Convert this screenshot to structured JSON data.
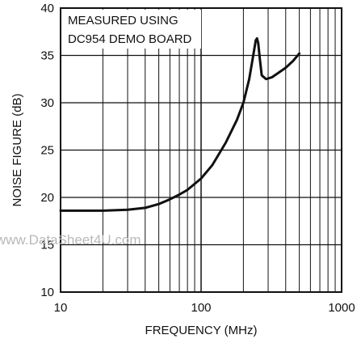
{
  "chart_data": {
    "type": "line",
    "title": "",
    "xlabel": "FREQUENCY (MHz)",
    "ylabel": "NOISE FIGURE (dB)",
    "x_scale": "log",
    "xlim": [
      10,
      1000
    ],
    "ylim": [
      10,
      40
    ],
    "x_ticks": [
      10,
      100,
      1000
    ],
    "x_tick_labels": [
      "10",
      "100",
      "1000"
    ],
    "y_ticks": [
      10,
      15,
      20,
      25,
      30,
      35,
      40
    ],
    "y_tick_labels": [
      "10",
      "15",
      "20",
      "25",
      "30",
      "35",
      "40"
    ],
    "grid": true,
    "annotation": [
      "MEASURED USING",
      "DC954 DEMO BOARD"
    ],
    "series": [
      {
        "x": [
          10,
          15,
          20,
          30,
          40,
          50,
          60,
          70,
          80,
          100,
          120,
          150,
          180,
          200,
          220,
          235,
          245,
          250,
          255,
          262,
          270,
          290,
          320,
          350,
          400,
          450,
          500
        ],
        "y": [
          18.6,
          18.6,
          18.6,
          18.7,
          18.9,
          19.3,
          19.8,
          20.3,
          20.8,
          22.0,
          23.4,
          25.8,
          28.2,
          30.0,
          32.5,
          35.0,
          36.6,
          36.8,
          36.3,
          34.6,
          32.9,
          32.5,
          32.7,
          33.1,
          33.7,
          34.4,
          35.2
        ]
      }
    ],
    "watermark": "www.DataSheet4U.com"
  }
}
